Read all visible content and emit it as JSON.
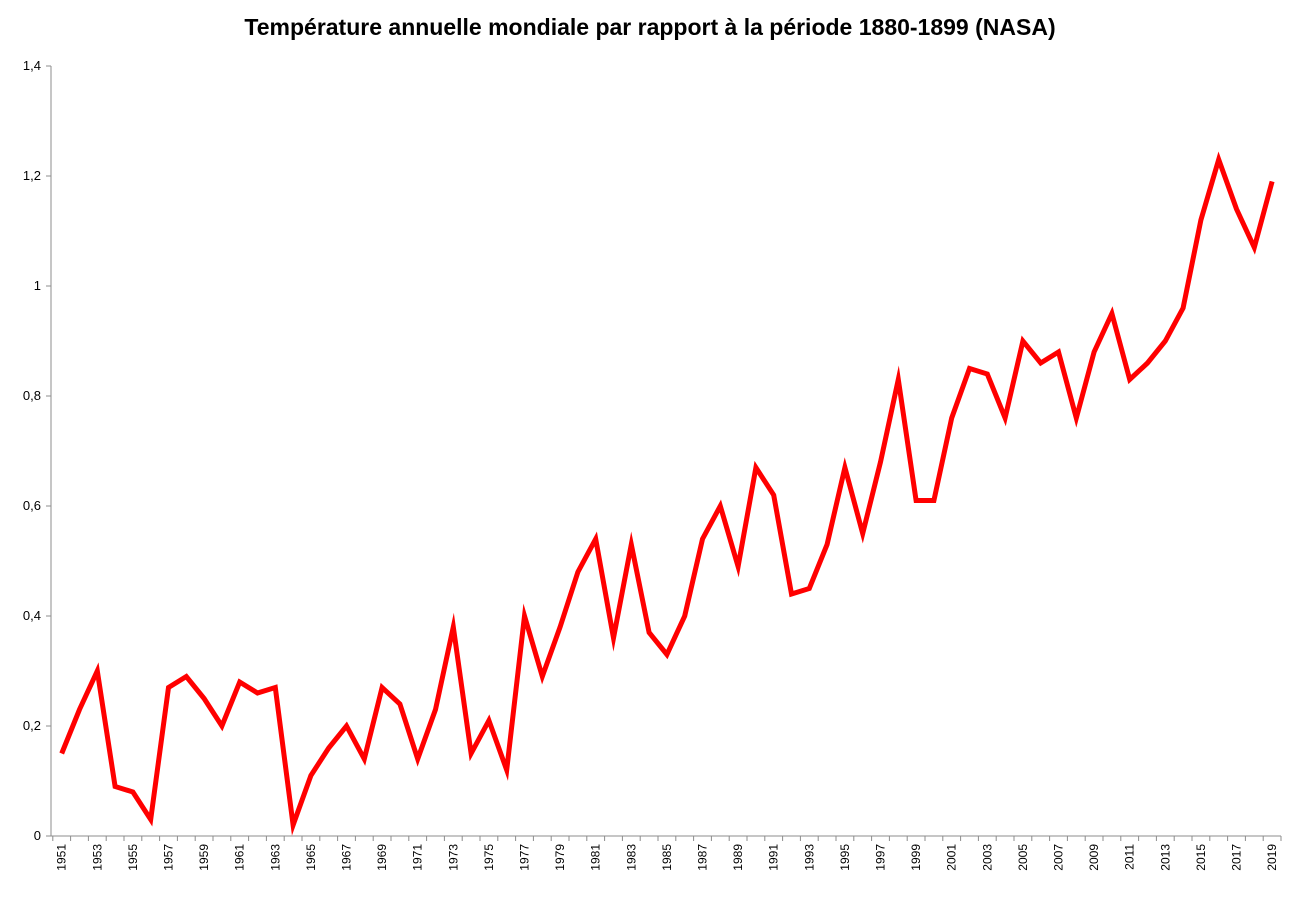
{
  "chart_data": {
    "type": "line",
    "title": "Température annuelle mondiale par rapport à la période 1880-1899 (NASA)",
    "xlabel": "",
    "ylabel": "",
    "ylim": [
      0,
      1.4
    ],
    "yticks": [
      "0",
      "0,2",
      "0,4",
      "0,6",
      "0,8",
      "1",
      "1,2",
      "1,4"
    ],
    "grid": false,
    "line_color": "#ff0000",
    "x": [
      1951,
      1952,
      1953,
      1954,
      1955,
      1956,
      1957,
      1958,
      1959,
      1960,
      1961,
      1962,
      1963,
      1964,
      1965,
      1966,
      1967,
      1968,
      1969,
      1970,
      1971,
      1972,
      1973,
      1974,
      1975,
      1976,
      1977,
      1978,
      1979,
      1980,
      1981,
      1982,
      1983,
      1984,
      1985,
      1986,
      1987,
      1988,
      1989,
      1990,
      1991,
      1992,
      1993,
      1994,
      1995,
      1996,
      1997,
      1998,
      1999,
      2000,
      2001,
      2002,
      2003,
      2004,
      2005,
      2006,
      2007,
      2008,
      2009,
      2010,
      2011,
      2012,
      2013,
      2014,
      2015,
      2016,
      2017,
      2018,
      2019
    ],
    "values": [
      0.15,
      0.23,
      0.3,
      0.09,
      0.08,
      0.03,
      0.27,
      0.29,
      0.25,
      0.2,
      0.28,
      0.26,
      0.27,
      0.02,
      0.11,
      0.16,
      0.2,
      0.14,
      0.27,
      0.24,
      0.14,
      0.23,
      0.38,
      0.15,
      0.21,
      0.12,
      0.4,
      0.29,
      0.38,
      0.48,
      0.54,
      0.36,
      0.53,
      0.37,
      0.33,
      0.4,
      0.54,
      0.6,
      0.49,
      0.67,
      0.62,
      0.44,
      0.45,
      0.53,
      0.67,
      0.55,
      0.68,
      0.83,
      0.61,
      0.61,
      0.76,
      0.85,
      0.84,
      0.76,
      0.9,
      0.86,
      0.88,
      0.76,
      0.88,
      0.95,
      0.83,
      0.86,
      0.9,
      0.96,
      1.12,
      1.23,
      1.14,
      1.07,
      1.19
    ],
    "xtick_labels": [
      "1951",
      "1953",
      "1955",
      "1957",
      "1959",
      "1961",
      "1963",
      "1965",
      "1967",
      "1969",
      "1971",
      "1973",
      "1975",
      "1977",
      "1979",
      "1981",
      "1983",
      "1985",
      "1987",
      "1989",
      "1991",
      "1993",
      "1995",
      "1997",
      "1999",
      "2001",
      "2003",
      "2005",
      "2007",
      "2009",
      "2011",
      "2013",
      "2015",
      "2017",
      "2019"
    ]
  }
}
